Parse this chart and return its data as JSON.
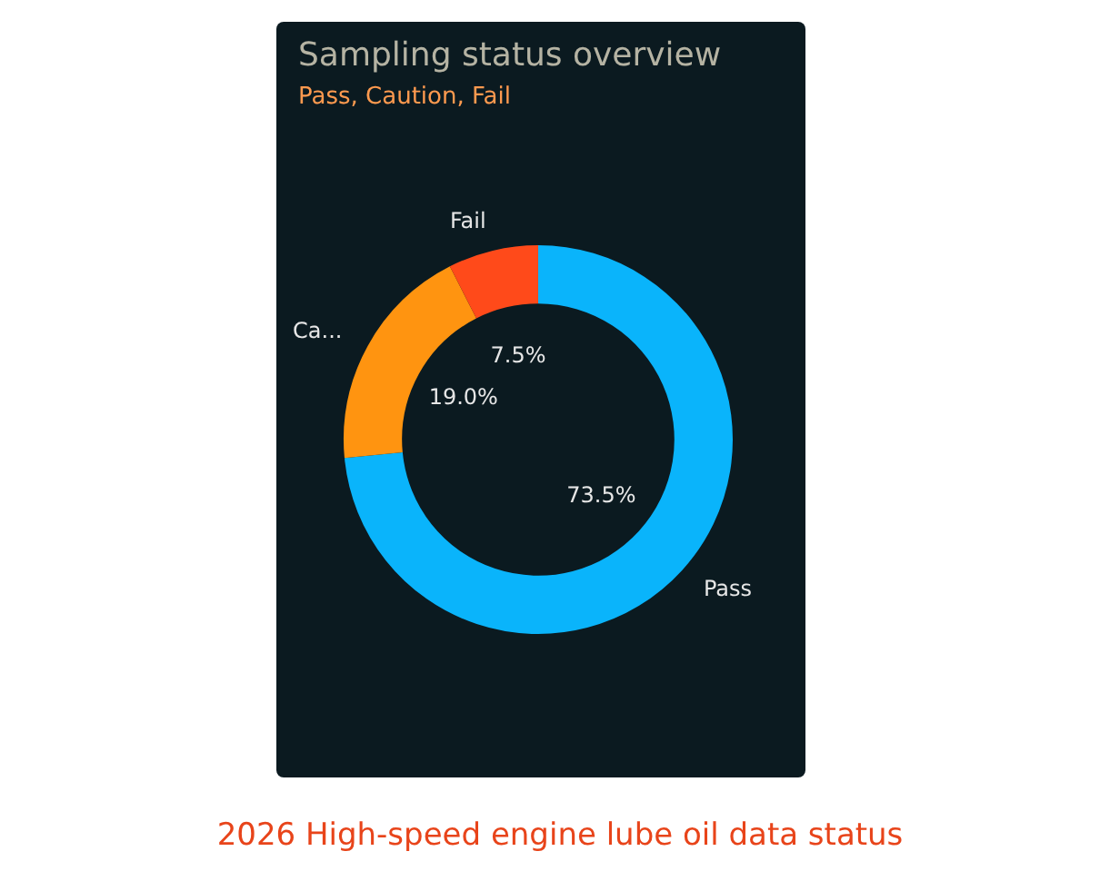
{
  "chart_data": {
    "type": "donut",
    "title": "Sampling status overview",
    "subtitle": "Pass, Caution, Fail",
    "categories": [
      "Pass",
      "Ca...",
      "Fail"
    ],
    "values": [
      73.5,
      19.0,
      7.5
    ],
    "colors": [
      "#0ab4fb",
      "#ff9410",
      "#ff4a1a"
    ],
    "value_labels": [
      "73.5%",
      "19.0%",
      "7.5%"
    ],
    "legend": false,
    "annotations": [
      "2026 High-speed engine lube oil data status"
    ]
  }
}
